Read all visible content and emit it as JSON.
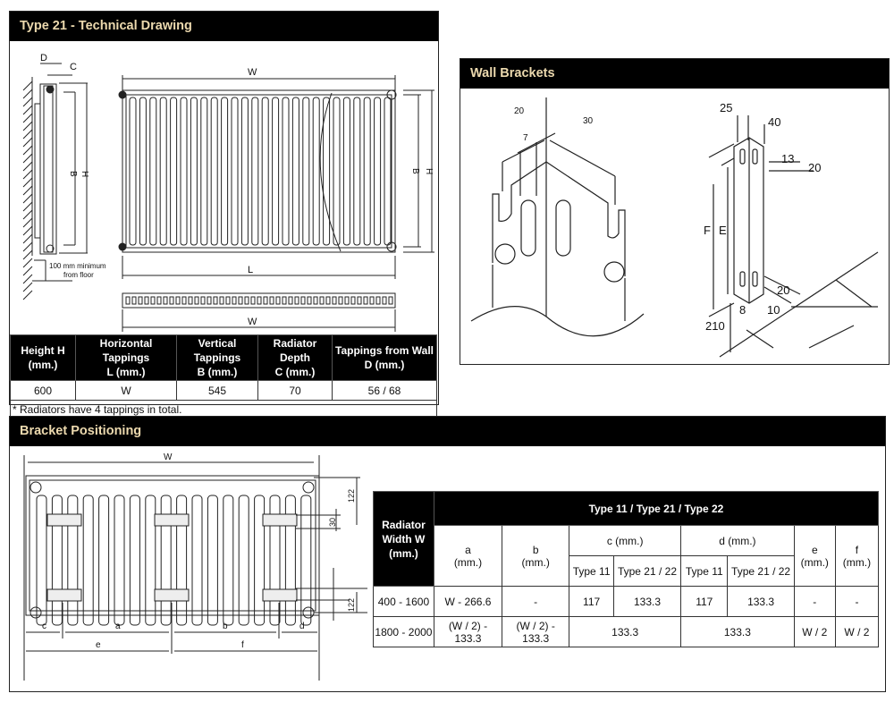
{
  "technical": {
    "title": "Type 21 - Technical Drawing",
    "labels": {
      "D": "D",
      "C": "C",
      "W": "W",
      "B": "B",
      "H": "H",
      "L": "L",
      "floor": "100 mm minimum",
      "floor2": "from floor"
    },
    "table": {
      "headers": [
        [
          "Height H",
          "(mm.)"
        ],
        [
          "Horizontal Tappings",
          "L (mm.)"
        ],
        [
          "Vertical Tappings",
          "B (mm.)"
        ],
        [
          "Radiator Depth",
          "C (mm.)"
        ],
        [
          "Tappings from Wall",
          "D (mm.)"
        ]
      ],
      "row": [
        "600",
        "W",
        "545",
        "70",
        "56 / 68"
      ],
      "note": "* Radiators have 4 tappings in total."
    }
  },
  "brackets": {
    "title": "Wall Brackets",
    "left_labels": {
      "d20": "20",
      "d30": "30",
      "d7": "7"
    },
    "right_labels": {
      "d25": "25",
      "d40": "40",
      "d13": "13",
      "d20a": "20",
      "F": "F",
      "E": "E",
      "d20b": "20",
      "d8": "8",
      "d10": "10",
      "d210": "210"
    }
  },
  "positioning": {
    "title": "Bracket Positioning",
    "labels": {
      "W": "W",
      "h122a": "122",
      "h30": "30",
      "h122b": "122",
      "c": "c",
      "a": "a",
      "b": "b",
      "d": "d",
      "e": "e",
      "f": "f"
    },
    "table": {
      "group_header": "Type 11 / Type 21 / Type 22",
      "row_header": [
        "Radiator",
        "Width W",
        "(mm.)"
      ],
      "col_a": [
        "a",
        "(mm.)"
      ],
      "col_b": [
        "b",
        "(mm.)"
      ],
      "col_c": "c (mm.)",
      "col_d": "d (mm.)",
      "col_e": [
        "e",
        "(mm.)"
      ],
      "col_f": [
        "f",
        "(mm.)"
      ],
      "sub": [
        "Type 11",
        "Type 21 / 22",
        "Type 11",
        "Type 21 / 22"
      ],
      "rows": [
        {
          "width": "400 - 1600",
          "a": "W - 266.6",
          "b": "-",
          "c11": "117",
          "c21": "133.3",
          "d11": "117",
          "d21": "133.3",
          "e": "-",
          "f": "-"
        },
        {
          "width": "1800 - 2000",
          "a": "(W / 2) - 133.3",
          "b": "(W / 2) - 133.3",
          "c": "133.3",
          "d": "133.3",
          "e": "W / 2",
          "f": "W / 2"
        }
      ]
    }
  }
}
